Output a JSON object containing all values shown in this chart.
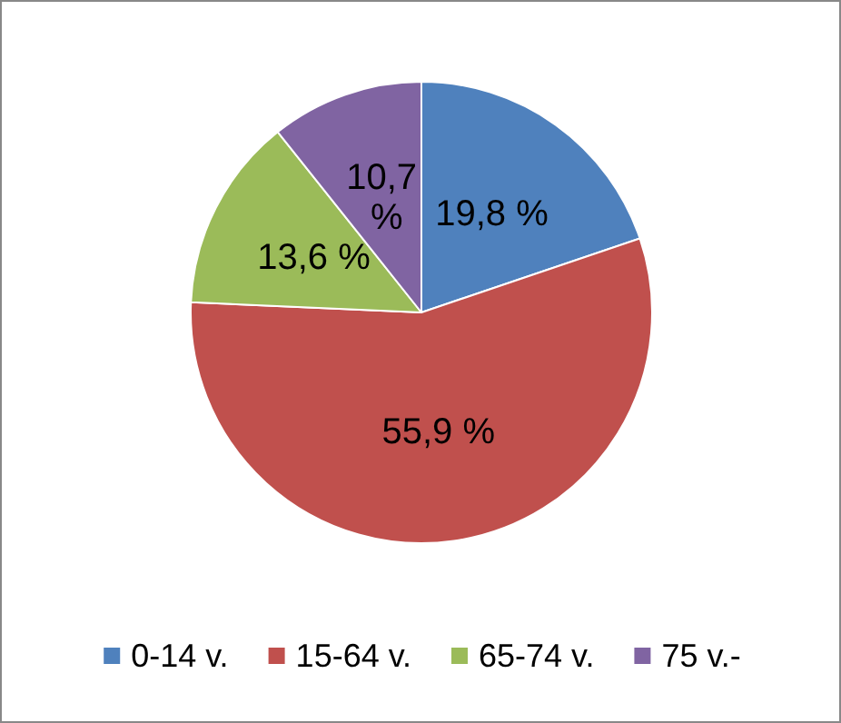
{
  "chart_data": {
    "type": "pie",
    "categories": [
      "0-14 v.",
      "15-64 v.",
      "65-74 v.",
      "75 v.-"
    ],
    "values": [
      19.8,
      55.9,
      13.6,
      10.7
    ],
    "colors": [
      "#4f81bd",
      "#c0504d",
      "#9bbb59",
      "#8064a2"
    ],
    "value_labels": [
      "19,8 %",
      "55,9 %",
      "13,6 %",
      "10,7 %"
    ],
    "legend": "bottom"
  }
}
